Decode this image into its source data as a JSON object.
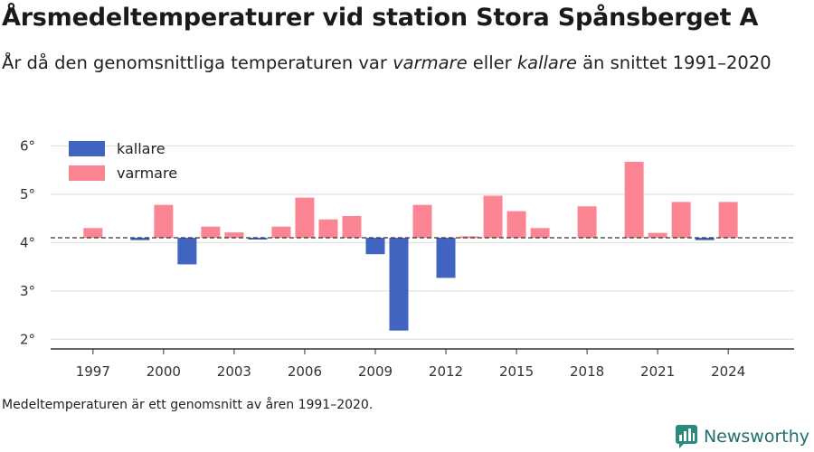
{
  "title": "Årsmedeltemperaturer vid station Stora Spånsberget A",
  "subtitle": {
    "part1": "År då den genomsnittliga temperaturen var ",
    "warm_word": "varmare",
    "part2": " eller ",
    "cold_word": "kallare",
    "part3": " än snittet 1991–2020"
  },
  "footnote": "Medeltemperaturen är ett genomsnitt av åren 1991–2020.",
  "logo_text": "Newsworthy",
  "colors": {
    "cold": "#4064c0",
    "warm": "#fb8593",
    "grid": "#dddddd",
    "axis": "#333333",
    "logo": "#2a8a7e"
  },
  "chart_data": {
    "type": "bar",
    "baseline": 4.1,
    "ylim": [
      1.8,
      6.4
    ],
    "y_ticks": [
      2,
      3,
      4,
      5,
      6
    ],
    "y_tick_labels": [
      "2°",
      "3°",
      "4°",
      "5°",
      "6°"
    ],
    "x_ticks": [
      1997,
      2000,
      2003,
      2006,
      2009,
      2012,
      2015,
      2018,
      2021,
      2024
    ],
    "x_tick_labels": [
      "1997",
      "2000",
      "2003",
      "2006",
      "2009",
      "2012",
      "2015",
      "2018",
      "2021",
      "2024"
    ],
    "xlim": [
      1995.2,
      2026.8
    ],
    "legend": [
      {
        "name": "kallare",
        "color": "#4064c0"
      },
      {
        "name": "varmare",
        "color": "#fb8593"
      }
    ],
    "legend_position": "top-left",
    "years": [
      1997,
      1999,
      2000,
      2001,
      2002,
      2003,
      2004,
      2005,
      2006,
      2007,
      2008,
      2009,
      2010,
      2011,
      2012,
      2013,
      2014,
      2015,
      2016,
      2018,
      2020,
      2021,
      2022,
      2023,
      2024
    ],
    "values": [
      4.3,
      4.05,
      4.78,
      3.55,
      4.33,
      4.21,
      4.07,
      4.33,
      4.93,
      4.48,
      4.55,
      3.76,
      2.18,
      4.78,
      3.27,
      4.13,
      4.97,
      4.65,
      4.3,
      4.75,
      5.67,
      4.2,
      4.84,
      4.05,
      4.84
    ]
  }
}
